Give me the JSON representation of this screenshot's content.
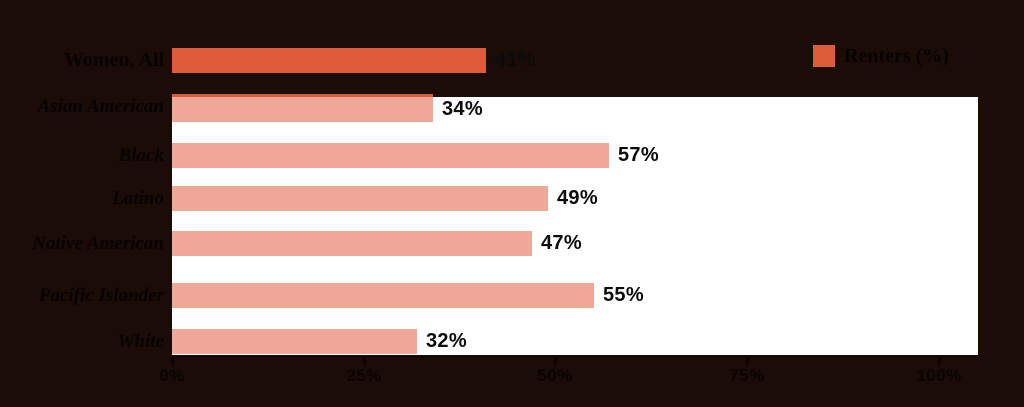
{
  "chart_data": {
    "type": "bar",
    "orientation": "horizontal",
    "title": "",
    "xlabel": "",
    "ylabel": "",
    "xlim": [
      0,
      105
    ],
    "grid": false,
    "legend": {
      "label": "Renters (%)",
      "position": "top-right",
      "swatch_color": "#dc5b38"
    },
    "series_name": "Renters (%)",
    "categories": [
      "Women, All",
      "Asian American",
      "Black",
      "Latino",
      "Native American",
      "Pacific Islander",
      "White"
    ],
    "values": [
      41,
      34,
      57,
      49,
      47,
      55,
      32
    ],
    "rows": [
      {
        "label": "Women, All",
        "value": 41,
        "value_label": "41%",
        "emphasis": true,
        "top_strip": false
      },
      {
        "label": "Asian American",
        "value": 34,
        "value_label": "34%",
        "emphasis": false,
        "top_strip": true
      },
      {
        "label": "Black",
        "value": 57,
        "value_label": "57%",
        "emphasis": false,
        "top_strip": false
      },
      {
        "label": "Latino",
        "value": 49,
        "value_label": "49%",
        "emphasis": false,
        "top_strip": false
      },
      {
        "label": "Native American",
        "value": 47,
        "value_label": "47%",
        "emphasis": false,
        "top_strip": false
      },
      {
        "label": "Pacific Islander",
        "value": 55,
        "value_label": "55%",
        "emphasis": false,
        "top_strip": false
      },
      {
        "label": "White",
        "value": 32,
        "value_label": "32%",
        "emphasis": false,
        "top_strip": false
      }
    ],
    "x_ticks": [
      {
        "value": 0,
        "label": "0%"
      },
      {
        "value": 25,
        "label": "25%"
      },
      {
        "value": 50,
        "label": "50%"
      },
      {
        "value": 75,
        "label": "75%"
      },
      {
        "value": 100,
        "label": "100%"
      }
    ],
    "colors": {
      "page_background": "#1b0c07",
      "plot_background": "#ffffff",
      "bar_primary": "#dc5b38",
      "bar_secondary": "#efa898",
      "text": "#070302",
      "axis_text": "#0b0402",
      "axis_line": "#150a06"
    }
  }
}
